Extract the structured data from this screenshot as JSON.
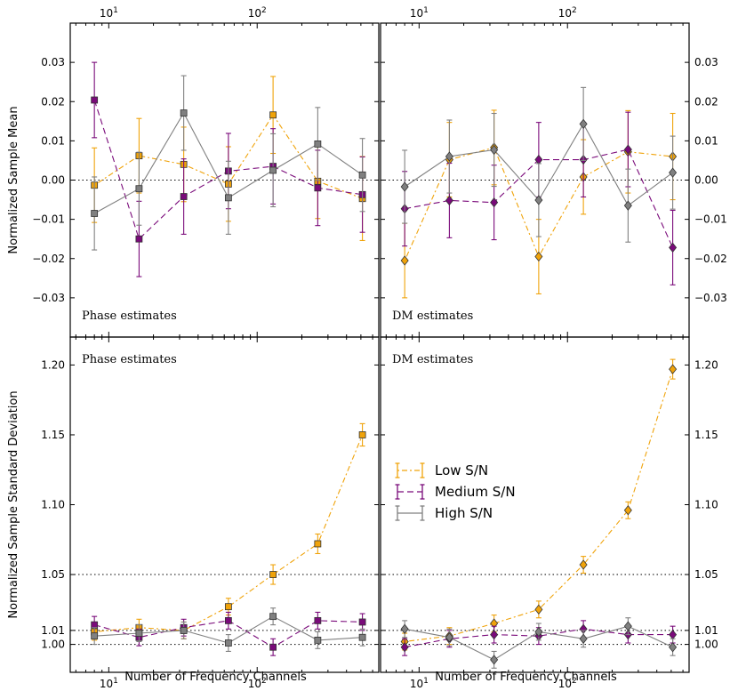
{
  "colors": {
    "low": "#f0a30a",
    "medium": "#7a0a7a",
    "high": "#808080"
  },
  "x_axis": {
    "label": "Number of Frequency Channels",
    "tick_base": "10",
    "tick_exponents": [
      "1",
      "2"
    ],
    "tick_values": [
      10,
      100
    ],
    "xlim": [
      5.5,
      660
    ]
  },
  "legend": {
    "entries": [
      "Low S/N",
      "Medium S/N",
      "High S/N"
    ],
    "location": "center-left of bottom-right panel"
  },
  "chart_data": [
    {
      "type": "line",
      "panel": "top-left",
      "annotation": "Phase estimates",
      "ylabel": "Normalized Sample Mean",
      "ylim": [
        -0.04,
        0.04
      ],
      "yticks": [
        -0.03,
        -0.02,
        -0.01,
        0.0,
        0.01,
        0.02,
        0.03
      ],
      "ytick_labels": [
        "−0.03",
        "−0.02",
        "−0.01",
        "0.00",
        "0.01",
        "0.02",
        "0.03"
      ],
      "ytick_side": "left",
      "reference_lines": [
        0.0
      ],
      "marker": "square",
      "x": [
        8,
        16,
        32,
        64,
        128,
        256,
        512
      ],
      "series": [
        {
          "name": "Low S/N",
          "values": [
            -0.0013,
            0.0062,
            0.004,
            -0.001,
            0.0166,
            -0.0003,
            -0.0047
          ],
          "errors": [
            0.0095,
            0.0095,
            0.0095,
            0.0095,
            0.0098,
            0.0095,
            0.0107
          ]
        },
        {
          "name": "Medium S/N",
          "values": [
            0.0204,
            -0.015,
            -0.0042,
            0.0023,
            0.0035,
            -0.002,
            -0.0037
          ],
          "errors": [
            0.0096,
            0.0096,
            0.0096,
            0.0096,
            0.0096,
            0.0096,
            0.0096
          ]
        },
        {
          "name": "High S/N",
          "values": [
            -0.0085,
            -0.0022,
            0.0171,
            -0.0045,
            0.0025,
            0.0092,
            0.0013
          ],
          "errors": [
            0.0093,
            0.0093,
            0.0095,
            0.0093,
            0.0093,
            0.0093,
            0.0093
          ]
        }
      ]
    },
    {
      "type": "line",
      "panel": "top-right",
      "annotation": "DM estimates",
      "ylabel": "",
      "ylim": [
        -0.04,
        0.04
      ],
      "yticks": [
        -0.03,
        -0.02,
        -0.01,
        0.0,
        0.01,
        0.02,
        0.03
      ],
      "ytick_labels": [
        "−0.03",
        "−0.02",
        "−0.01",
        "0.00",
        "0.01",
        "0.02",
        "0.03"
      ],
      "ytick_side": "right",
      "reference_lines": [
        0.0
      ],
      "marker": "diamond",
      "x": [
        8,
        16,
        32,
        64,
        128,
        256,
        512
      ],
      "series": [
        {
          "name": "Low S/N",
          "values": [
            -0.0205,
            0.0052,
            0.0083,
            -0.0195,
            0.0008,
            0.0072,
            0.006
          ],
          "errors": [
            0.0095,
            0.0095,
            0.0095,
            0.0095,
            0.0095,
            0.0105,
            0.011
          ]
        },
        {
          "name": "Medium S/N",
          "values": [
            -0.0073,
            -0.0052,
            -0.0057,
            0.0052,
            0.0052,
            0.0078,
            -0.0172
          ],
          "errors": [
            0.0095,
            0.0095,
            0.0095,
            0.0095,
            0.0095,
            0.0095,
            0.0095
          ]
        },
        {
          "name": "High S/N",
          "values": [
            -0.0017,
            0.006,
            0.0077,
            -0.0051,
            0.0143,
            -0.0065,
            0.0019
          ],
          "errors": [
            0.0093,
            0.0093,
            0.0093,
            0.0093,
            0.0093,
            0.0093,
            0.0093
          ]
        }
      ]
    },
    {
      "type": "line",
      "panel": "bottom-left",
      "annotation": "Phase estimates",
      "ylabel": "Normalized Sample Standard Deviation",
      "ylim": [
        0.98,
        1.22
      ],
      "yticks": [
        1.0,
        1.01,
        1.05,
        1.1,
        1.15,
        1.2
      ],
      "ytick_labels": [
        "1.00",
        "1.01",
        "1.05",
        "1.10",
        "1.15",
        "1.20"
      ],
      "ytick_side": "left",
      "reference_lines": [
        1.0,
        1.01,
        1.05
      ],
      "marker": "square",
      "x": [
        8,
        16,
        32,
        64,
        128,
        256,
        512
      ],
      "series": [
        {
          "name": "Low S/N",
          "values": [
            1.009,
            1.012,
            1.01,
            1.027,
            1.05,
            1.072,
            1.15
          ],
          "errors": [
            0.006,
            0.006,
            0.006,
            0.006,
            0.007,
            0.007,
            0.008
          ]
        },
        {
          "name": "Medium S/N",
          "values": [
            1.014,
            1.005,
            1.012,
            1.017,
            0.998,
            1.017,
            1.016
          ],
          "errors": [
            0.006,
            0.006,
            0.006,
            0.006,
            0.006,
            0.006,
            0.006
          ]
        },
        {
          "name": "High S/N",
          "values": [
            1.006,
            1.008,
            1.01,
            1.001,
            1.02,
            1.003,
            1.005
          ],
          "errors": [
            0.006,
            0.006,
            0.006,
            0.006,
            0.006,
            0.006,
            0.006
          ]
        }
      ]
    },
    {
      "type": "line",
      "panel": "bottom-right",
      "annotation": "DM estimates",
      "ylabel": "",
      "ylim": [
        0.98,
        1.22
      ],
      "yticks": [
        1.0,
        1.01,
        1.05,
        1.1,
        1.15,
        1.2
      ],
      "ytick_labels": [
        "1.00",
        "1.01",
        "1.05",
        "1.10",
        "1.15",
        "1.20"
      ],
      "ytick_side": "right",
      "reference_lines": [
        1.0,
        1.01,
        1.05
      ],
      "marker": "diamond",
      "x": [
        8,
        16,
        32,
        64,
        128,
        256,
        512
      ],
      "series": [
        {
          "name": "Low S/N",
          "values": [
            1.002,
            1.006,
            1.015,
            1.025,
            1.057,
            1.096,
            1.197
          ],
          "errors": [
            0.006,
            0.006,
            0.006,
            0.006,
            0.006,
            0.006,
            0.007
          ]
        },
        {
          "name": "Medium S/N",
          "values": [
            0.998,
            1.004,
            1.007,
            1.006,
            1.011,
            1.007,
            1.007
          ],
          "errors": [
            0.006,
            0.006,
            0.006,
            0.006,
            0.006,
            0.006,
            0.006
          ]
        },
        {
          "name": "High S/N",
          "values": [
            1.011,
            1.005,
            0.989,
            1.009,
            1.004,
            1.013,
            0.998
          ],
          "errors": [
            0.006,
            0.006,
            0.006,
            0.006,
            0.006,
            0.006,
            0.006
          ]
        }
      ]
    }
  ]
}
